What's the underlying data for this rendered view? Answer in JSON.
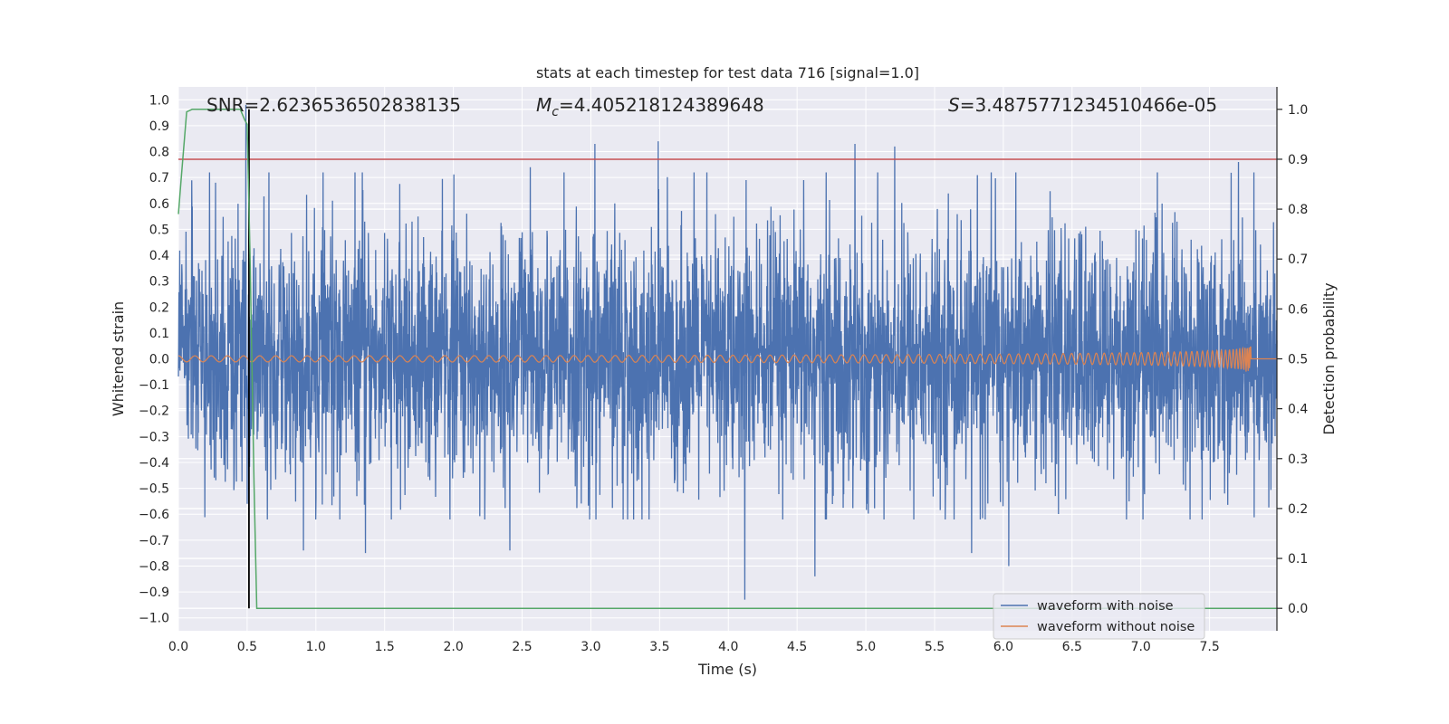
{
  "chart_data": {
    "type": "line",
    "title": "stats at each timestep for test data 716 [signal=1.0]",
    "xlabel": "Time (s)",
    "ylabel_left": "Whitened strain",
    "ylabel_right": "Detection probability",
    "xlim": [
      0.0,
      7.99
    ],
    "ylim_left": [
      -1.05,
      1.05
    ],
    "ylim_right": [
      -0.045,
      1.045
    ],
    "x_ticks": [
      "0.0",
      "0.5",
      "1.0",
      "1.5",
      "2.0",
      "2.5",
      "3.0",
      "3.5",
      "4.0",
      "4.5",
      "5.0",
      "5.5",
      "6.0",
      "6.5",
      "7.0",
      "7.5"
    ],
    "x_tick_values": [
      0.0,
      0.5,
      1.0,
      1.5,
      2.0,
      2.5,
      3.0,
      3.5,
      4.0,
      4.5,
      5.0,
      5.5,
      6.0,
      6.5,
      7.0,
      7.5
    ],
    "y_left_ticks": [
      "1.0",
      "0.9",
      "0.8",
      "0.7",
      "0.6",
      "0.5",
      "0.4",
      "0.3",
      "0.2",
      "0.1",
      "0.0",
      "−0.1",
      "−0.2",
      "−0.3",
      "−0.4",
      "−0.5",
      "−0.6",
      "−0.7",
      "−0.8",
      "−0.9",
      "−1.0"
    ],
    "y_left_tick_values": [
      1.0,
      0.9,
      0.8,
      0.7,
      0.6,
      0.5,
      0.4,
      0.3,
      0.2,
      0.1,
      0.0,
      -0.1,
      -0.2,
      -0.3,
      -0.4,
      -0.5,
      -0.6,
      -0.7,
      -0.8,
      -0.9,
      -1.0
    ],
    "y_right_ticks": [
      "1.0",
      "0.9",
      "0.8",
      "0.7",
      "0.6",
      "0.5",
      "0.4",
      "0.3",
      "0.2",
      "0.1",
      "0.0"
    ],
    "y_right_tick_values": [
      1.0,
      0.9,
      0.8,
      0.7,
      0.6,
      0.5,
      0.4,
      0.3,
      0.2,
      0.1,
      0.0
    ],
    "annotations": {
      "snr": "SNR=2.6236536502838135",
      "mc_symbol": "M",
      "mc_sub": "c",
      "mc_value": "=4.405218124389648",
      "s_symbol": "S",
      "s_value": "=3.4875771234510466e-05"
    },
    "threshold_right": 0.9,
    "marker_time": 0.5,
    "series": [
      {
        "name": "waveform with noise",
        "axis": "left",
        "color": "#4c72b0",
        "description": "whitened noisy strain, roughly uniform amplitude ±0.4 with spikes to ±0.85, sampled over 0–7.99 s",
        "peak_spikes": [
          {
            "t": 0.49,
            "v": 0.98
          },
          {
            "t": 0.5,
            "v": -0.56
          },
          {
            "t": 0.27,
            "v": 0.68
          },
          {
            "t": 0.91,
            "v": -0.74
          },
          {
            "t": 1.36,
            "v": -0.75
          },
          {
            "t": 2.41,
            "v": -0.74
          },
          {
            "t": 2.56,
            "v": 0.74
          },
          {
            "t": 3.03,
            "v": 0.83
          },
          {
            "t": 3.49,
            "v": 0.84
          },
          {
            "t": 4.12,
            "v": -0.93
          },
          {
            "t": 4.13,
            "v": 0.69
          },
          {
            "t": 4.63,
            "v": -0.84
          },
          {
            "t": 4.92,
            "v": 0.83
          },
          {
            "t": 5.21,
            "v": 0.82
          },
          {
            "t": 5.77,
            "v": 0.81
          },
          {
            "t": 5.77,
            "v": -0.75
          },
          {
            "t": 6.04,
            "v": -0.8
          },
          {
            "t": 7.71,
            "v": 0.76
          }
        ]
      },
      {
        "name": "waveform without noise",
        "axis": "left",
        "color": "#dd8452",
        "description": "chirp signal, amplitude rising from ~0.005 at t=0 to ~0.05 near merger at t≈7.8 s",
        "merger_time": 7.8,
        "amplitude_start": 0.005,
        "amplitude_peak": 0.05
      },
      {
        "name": "detection probability",
        "axis": "right",
        "color": "#55a868",
        "x": [
          0.0,
          0.02,
          0.06,
          0.1,
          0.2,
          0.3,
          0.45,
          0.48,
          0.5,
          0.52,
          0.55,
          0.57,
          0.6,
          1.0,
          2.0,
          3.0,
          4.0,
          5.0,
          6.0,
          7.0,
          7.99
        ],
        "y": [
          0.79,
          0.86,
          0.995,
          1.0,
          1.0,
          1.0,
          1.0,
          0.98,
          0.97,
          0.72,
          0.25,
          0.0,
          0.0,
          0.0,
          0.0,
          0.0,
          0.0,
          0.0,
          0.0,
          0.0,
          0.0
        ]
      }
    ],
    "legend": {
      "placement": "lower-right",
      "entries": [
        {
          "label": "waveform with noise",
          "color": "#4c72b0"
        },
        {
          "label": "waveform without noise",
          "color": "#dd8452"
        }
      ]
    },
    "colors": {
      "plot_bg": "#eaeaf2",
      "grid": "#ffffff",
      "threshold": "#c44e52",
      "marker": "#000000"
    }
  }
}
